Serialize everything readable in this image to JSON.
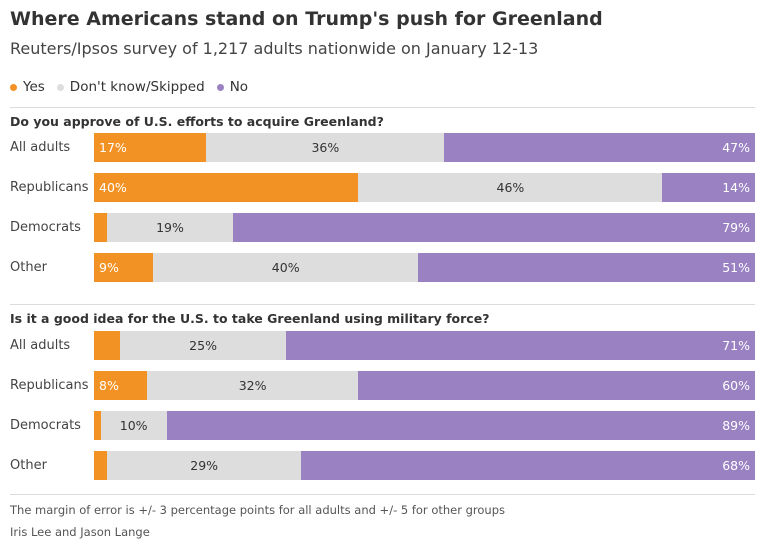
{
  "title": "Where Americans stand on Trump's push for Greenland",
  "subtitle": "Reuters/Ipsos survey of 1,217 adults nationwide on January 12-13",
  "legend": [
    {
      "label": "Yes",
      "color": "#f39224"
    },
    {
      "label": "Don't know/Skipped",
      "color": "#dddddd"
    },
    {
      "label": "No",
      "color": "#9a82c2"
    }
  ],
  "chart_data": [
    {
      "type": "bar",
      "stacked": "100%",
      "orientation": "horizontal",
      "title": "Do you approve of U.S. efforts to acquire Greenland?",
      "categories": [
        "All adults",
        "Republicans",
        "Democrats",
        "Other"
      ],
      "series": [
        {
          "name": "Yes",
          "values": [
            17,
            40,
            2,
            9
          ],
          "labels": [
            "17%",
            "40%",
            "",
            "9%"
          ]
        },
        {
          "name": "Don't know/Skipped",
          "values": [
            36,
            46,
            19,
            40
          ],
          "labels": [
            "36%",
            "46%",
            "19%",
            "40%"
          ]
        },
        {
          "name": "No",
          "values": [
            47,
            14,
            79,
            51
          ],
          "labels": [
            "47%",
            "14%",
            "79%",
            "51%"
          ]
        }
      ]
    },
    {
      "type": "bar",
      "stacked": "100%",
      "orientation": "horizontal",
      "title": "Is it a good idea for the U.S. to take Greenland using military force?",
      "categories": [
        "All adults",
        "Republicans",
        "Democrats",
        "Other"
      ],
      "series": [
        {
          "name": "Yes",
          "values": [
            4,
            8,
            1,
            2
          ],
          "labels": [
            "",
            "8%",
            "",
            ""
          ]
        },
        {
          "name": "Don't know/Skipped",
          "values": [
            25,
            32,
            10,
            29
          ],
          "labels": [
            "25%",
            "32%",
            "10%",
            "29%"
          ]
        },
        {
          "name": "No",
          "values": [
            71,
            60,
            89,
            68
          ],
          "labels": [
            "71%",
            "60%",
            "89%",
            "68%"
          ]
        }
      ]
    }
  ],
  "footnote": "The margin of error is +/- 3 percentage points for all adults and +/- 5 for other groups",
  "credit": "Iris Lee and Jason Lange"
}
